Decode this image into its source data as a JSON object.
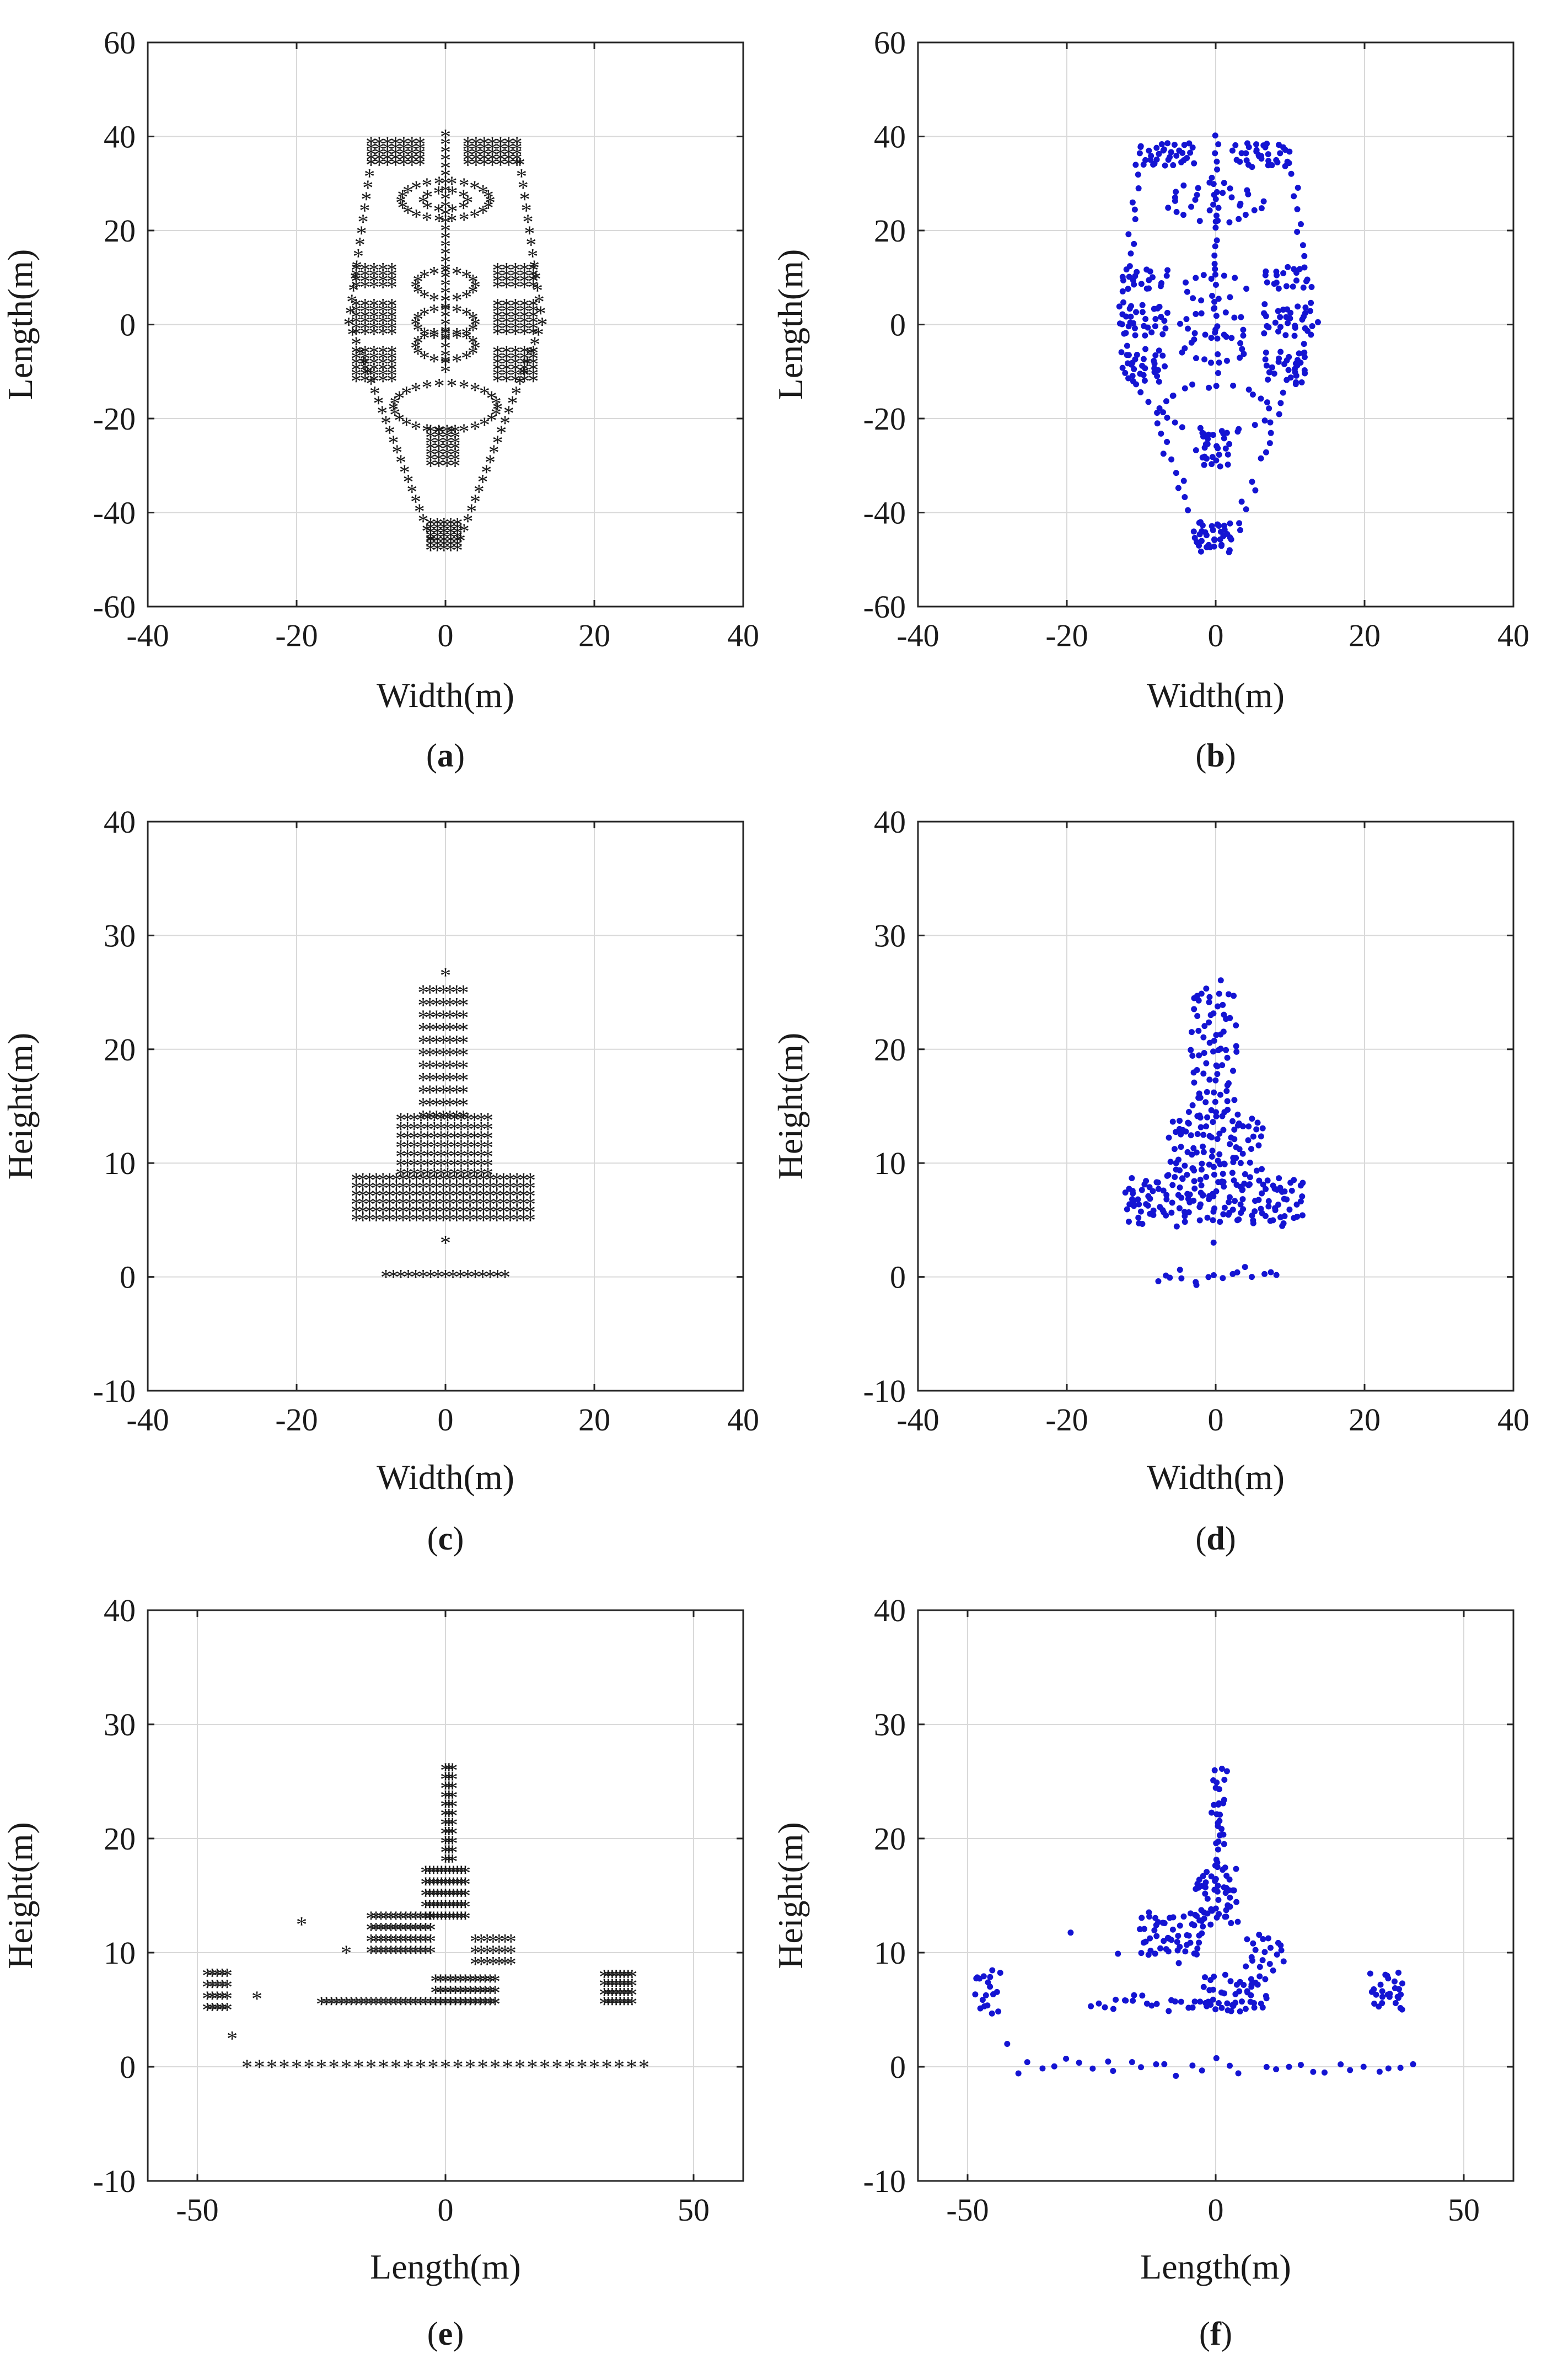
{
  "figure": {
    "marker_colors": {
      "red": "#ff0000",
      "blue": "#1414d2"
    },
    "grid_color": "#d9d9d9",
    "axis_color": "#262626"
  },
  "chart_data": [
    {
      "id": "a",
      "type": "scatter",
      "caption_letter": "a",
      "marker": "asterisk",
      "color": "#ff0000",
      "xlabel": "Width(m)",
      "ylabel": "Length(m)",
      "xlim": [
        -40,
        40
      ],
      "ylim": [
        -60,
        60
      ],
      "xticks": [
        -40,
        -20,
        0,
        20,
        40
      ],
      "yticks": [
        -60,
        -40,
        -20,
        0,
        20,
        40,
        60
      ],
      "grid": true,
      "shape": "top-view"
    },
    {
      "id": "b",
      "type": "scatter",
      "caption_letter": "b",
      "marker": "dot",
      "color": "#1414d2",
      "xlabel": "Width(m)",
      "ylabel": "Length(m)",
      "xlim": [
        -40,
        40
      ],
      "ylim": [
        -60,
        60
      ],
      "xticks": [
        -40,
        -20,
        0,
        20,
        40
      ],
      "yticks": [
        -60,
        -40,
        -20,
        0,
        20,
        40,
        60
      ],
      "grid": true,
      "shape": "top-view"
    },
    {
      "id": "c",
      "type": "scatter",
      "caption_letter": "c",
      "marker": "asterisk",
      "color": "#ff0000",
      "xlabel": "Width(m)",
      "ylabel": "Height(m)",
      "xlim": [
        -40,
        40
      ],
      "ylim": [
        -10,
        40
      ],
      "xticks": [
        -40,
        -20,
        0,
        20,
        40
      ],
      "yticks": [
        -10,
        0,
        10,
        20,
        30,
        40
      ],
      "grid": true,
      "shape": "front-view"
    },
    {
      "id": "d",
      "type": "scatter",
      "caption_letter": "d",
      "marker": "dot",
      "color": "#1414d2",
      "xlabel": "Width(m)",
      "ylabel": "Height(m)",
      "xlim": [
        -40,
        40
      ],
      "ylim": [
        -10,
        40
      ],
      "xticks": [
        -40,
        -20,
        0,
        20,
        40
      ],
      "yticks": [
        -10,
        0,
        10,
        20,
        30,
        40
      ],
      "grid": true,
      "shape": "front-view"
    },
    {
      "id": "e",
      "type": "scatter",
      "caption_letter": "e",
      "marker": "asterisk",
      "color": "#ff0000",
      "xlabel": "Length(m)",
      "ylabel": "Height(m)",
      "xlim": [
        -60,
        60
      ],
      "ylim": [
        -10,
        40
      ],
      "xticks": [
        -50,
        0,
        50
      ],
      "yticks": [
        -10,
        0,
        10,
        20,
        30,
        40
      ],
      "grid": true,
      "shape": "side-view"
    },
    {
      "id": "f",
      "type": "scatter",
      "caption_letter": "f",
      "marker": "dot",
      "color": "#1414d2",
      "xlabel": "Length(m)",
      "ylabel": "Height(m)",
      "xlim": [
        -60,
        60
      ],
      "ylim": [
        -10,
        40
      ],
      "xticks": [
        -50,
        0,
        50
      ],
      "yticks": [
        -10,
        0,
        10,
        20,
        30,
        40
      ],
      "grid": true,
      "shape": "side-view"
    }
  ]
}
